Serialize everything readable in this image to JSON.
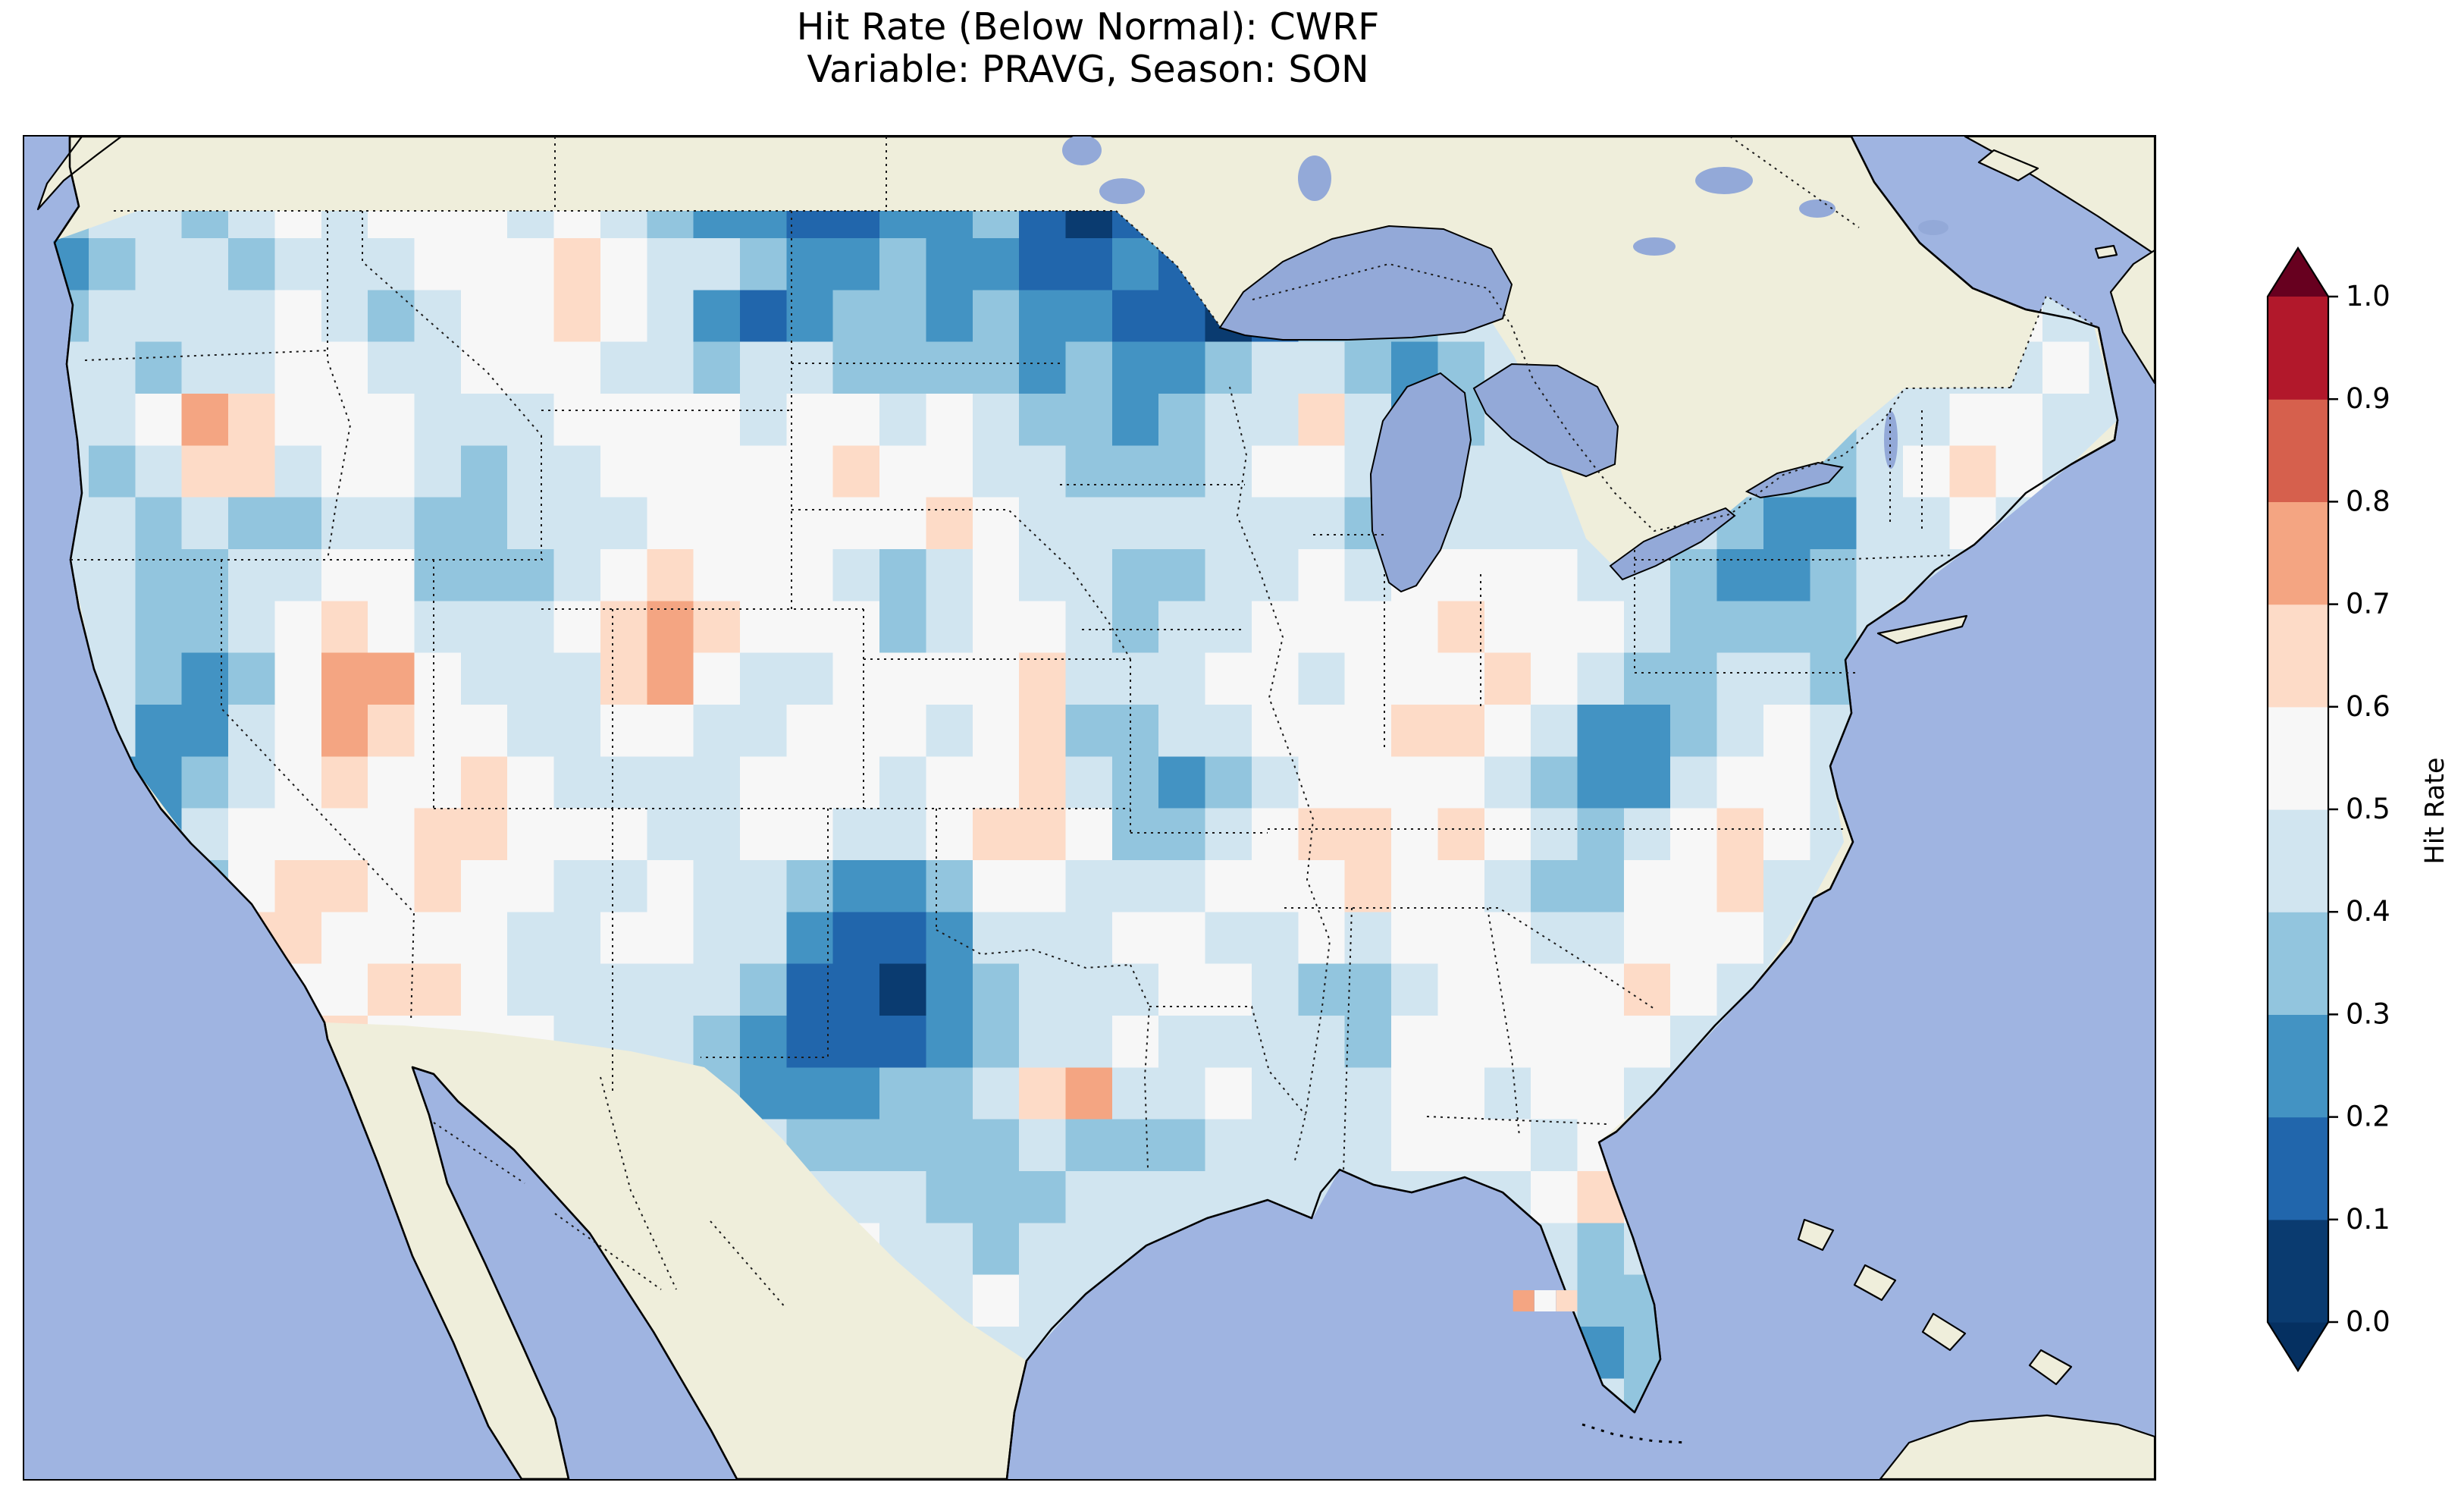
{
  "title": {
    "line1": "Hit Rate (Below Normal): CWRF",
    "line2": "Variable: PRAVG, Season: SON"
  },
  "colorbar": {
    "label": "Hit Rate",
    "ticks": [
      "0.0",
      "0.1",
      "0.2",
      "0.3",
      "0.4",
      "0.5",
      "0.6",
      "0.7",
      "0.8",
      "0.9",
      "1.0"
    ]
  },
  "map_colors": {
    "ocean": "#9fb4e1",
    "land": "#efeedb",
    "lake": "#93a9d8",
    "coast": "#000000",
    "border_dots": "#1b1b1b"
  },
  "chart_data": {
    "type": "heatmap",
    "title": "Hit Rate (Below Normal): CWRF",
    "subtitle": "Variable: PRAVG, Season: SON",
    "metric": "Hit Rate",
    "category": "Below Normal",
    "model": "CWRF",
    "variable": "PRAVG",
    "season": "SON",
    "region": "Continental United States",
    "colorbar": {
      "label": "Hit Rate",
      "ticks": [
        0.0,
        0.1,
        0.2,
        0.3,
        0.4,
        0.5,
        0.6,
        0.7,
        0.8,
        0.9,
        1.0
      ],
      "extend": "both"
    },
    "bin_colors": [
      "#0a3b70",
      "#2166ac",
      "#4393c3",
      "#92c5de",
      "#d1e5f0",
      "#f7f7f7",
      "#fddbc7",
      "#f4a582",
      "#d6604d",
      "#b2182b"
    ],
    "extend_colors": {
      "under": "#053061",
      "over": "#67001f"
    },
    "grid": {
      "lon_min": -125.0,
      "lon_max": -66.5,
      "lat_min": 24.5,
      "lat_max": 49.5,
      "cols": 45,
      "rows": 24,
      "cell_encoding": "one char per cell; digit d -> hit-rate bin [d/10,(d+1)/10); rows ordered north to south, columns west to east; values estimated from map colors",
      "rows_north_to_south": [
        "344345455545432211223101213444444444444444444",
        "234434445556544322322112102344444444444444444",
        "344445434556542123323221101333444444444444544",
        "443445544555443443333232234432344444444444454",
        "445765554445555455454332344642344444443445544",
        "434664554344555556554433345542444444433456544",
        "443433443344455555565444444433444444322445444",
        "443344553334565554345443344545555443223444444",
        "443345654445676555345543445555655543333444444",
        "443235775444675445555644455455565433443444444",
        "442245765544554455545633445556654223454444444",
        "322345655654444555455643234555543224554444444",
        "332455556655544554456653345665654345654444444",
        "433356656554454432235544455565543355644444444",
        "334466555544554421124445544545554455544444444",
        "324565566544444311023444554334555565444444444",
        "445666655554443211123445444435555554444444444",
        "555555555544543222334674454445545544444444444",
        "555555555555554433333433344445554554444444444",
        "555555555555555544433344444444445654444444444",
        "555555555555555555443444444444444344444444444",
        "555555555555555555445444444444444334444444444",
        "555555555555555555544444444444444234444444444",
        "555555555555555555554444444444444434444444444"
      ]
    },
    "offshore_cells": [
      {
        "lon": -83.6,
        "lat": 27.1,
        "bin": 7
      },
      {
        "lon": -83.0,
        "lat": 27.1,
        "bin": 5
      },
      {
        "lon": -82.4,
        "lat": 27.1,
        "bin": 6
      }
    ]
  }
}
